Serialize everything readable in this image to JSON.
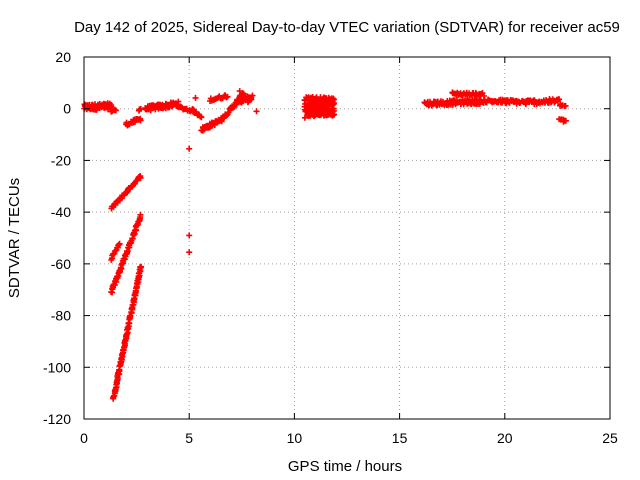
{
  "chart_data": {
    "type": "scatter",
    "title": "Day 142 of 2025, Sidereal Day-to-day VTEC variation (SDTVAR) for receiver ac59",
    "xlabel": "GPS time / hours",
    "ylabel": "SDTVAR / TECUs",
    "xlim": [
      0,
      25
    ],
    "ylim": [
      -120,
      20
    ],
    "xticks": [
      0,
      5,
      10,
      15,
      20,
      25
    ],
    "yticks": [
      -120,
      -100,
      -80,
      -60,
      -40,
      -20,
      0,
      20
    ],
    "grid": true,
    "marker": "plus",
    "color": "#ff0000",
    "series": [
      {
        "name": "SDTVAR",
        "segments": [
          {
            "from": [
              0.0,
              0.5
            ],
            "to": [
              1.3,
              1.0
            ],
            "n": 70,
            "spread": 1.2
          },
          {
            "from": [
              1.3,
              -1.0
            ],
            "to": [
              1.5,
              -0.5
            ],
            "n": 6,
            "spread": 0.4
          },
          {
            "from": [
              2.0,
              -6.0
            ],
            "to": [
              2.7,
              -4.0
            ],
            "n": 20,
            "spread": 0.7
          },
          {
            "from": [
              2.6,
              -0.5
            ],
            "to": [
              2.7,
              0.0
            ],
            "n": 3,
            "spread": 0.3
          },
          {
            "from": [
              2.9,
              0.0
            ],
            "to": [
              4.5,
              1.8
            ],
            "n": 60,
            "spread": 1.0
          },
          {
            "from": [
              4.5,
              0.5
            ],
            "to": [
              5.2,
              -0.8
            ],
            "n": 15,
            "spread": 0.6
          },
          {
            "from": [
              5.2,
              -1.0
            ],
            "to": [
              5.6,
              -3.0
            ],
            "n": 10,
            "spread": 0.5
          },
          {
            "from": [
              5.6,
              -8.0
            ],
            "to": [
              6.6,
              -4.0
            ],
            "n": 40,
            "spread": 0.8
          },
          {
            "from": [
              6.0,
              3.5
            ],
            "to": [
              6.8,
              5.0
            ],
            "n": 20,
            "spread": 0.6
          },
          {
            "from": [
              6.6,
              -3.5
            ],
            "to": [
              7.0,
              0.0
            ],
            "n": 12,
            "spread": 0.6
          },
          {
            "from": [
              7.0,
              0.0
            ],
            "to": [
              7.6,
              6.0
            ],
            "n": 25,
            "spread": 0.8
          },
          {
            "from": [
              7.3,
              3.0
            ],
            "to": [
              8.0,
              4.0
            ],
            "n": 25,
            "spread": 1.2
          },
          {
            "from": [
              1.3,
              -38.5
            ],
            "to": [
              2.7,
              -26.0
            ],
            "n": 45,
            "spread": 0.5
          },
          {
            "from": [
              1.3,
              -58.0
            ],
            "to": [
              1.7,
              -52.0
            ],
            "n": 14,
            "spread": 0.5
          },
          {
            "from": [
              1.3,
              -71.0
            ],
            "to": [
              2.7,
              -41.5
            ],
            "n": 80,
            "spread": 0.6
          },
          {
            "from": [
              1.4,
              -112.0
            ],
            "to": [
              2.7,
              -61.0
            ],
            "n": 130,
            "spread": 0.6
          },
          {
            "from": [
              10.5,
              4.0
            ],
            "to": [
              11.9,
              3.5
            ],
            "n": 45,
            "spread": 0.8
          },
          {
            "from": [
              10.5,
              1.5
            ],
            "to": [
              11.9,
              2.0
            ],
            "n": 45,
            "spread": 0.8
          },
          {
            "from": [
              10.5,
              -0.5
            ],
            "to": [
              11.9,
              -0.5
            ],
            "n": 45,
            "spread": 0.8
          },
          {
            "from": [
              10.6,
              -2.5
            ],
            "to": [
              11.9,
              -2.0
            ],
            "n": 40,
            "spread": 0.6
          },
          {
            "from": [
              16.2,
              2.0
            ],
            "to": [
              19.0,
              2.8
            ],
            "n": 90,
            "spread": 0.9
          },
          {
            "from": [
              17.5,
              5.8
            ],
            "to": [
              19.0,
              5.5
            ],
            "n": 35,
            "spread": 0.6
          },
          {
            "from": [
              19.0,
              3.0
            ],
            "to": [
              21.0,
              2.5
            ],
            "n": 50,
            "spread": 0.8
          },
          {
            "from": [
              21.0,
              2.5
            ],
            "to": [
              22.6,
              3.0
            ],
            "n": 45,
            "spread": 0.9
          },
          {
            "from": [
              22.6,
              1.5
            ],
            "to": [
              22.9,
              1.0
            ],
            "n": 6,
            "spread": 0.4
          },
          {
            "from": [
              22.6,
              -4.0
            ],
            "to": [
              22.9,
              -5.0
            ],
            "n": 8,
            "spread": 0.4
          }
        ],
        "points": [
          [
            5.3,
            4.2
          ],
          [
            5.0,
            -15.5
          ],
          [
            5.0,
            -49.0
          ],
          [
            5.0,
            -55.5
          ],
          [
            8.2,
            -1.0
          ],
          [
            10.5,
            -3.5
          ],
          [
            3.8,
            0.5
          ],
          [
            7.4,
            6.8
          ]
        ]
      }
    ]
  }
}
